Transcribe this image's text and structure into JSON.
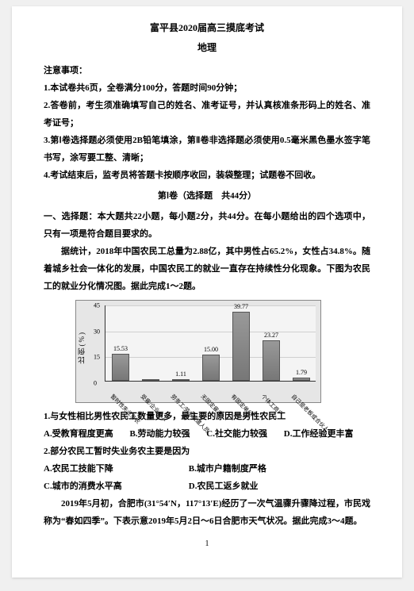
{
  "header": {
    "title_line1": "富平县2020届高三摸底考试",
    "title_line2": "地理"
  },
  "notes": {
    "heading": "注意事项：",
    "n1": "1.本试卷共6页，全卷满分100分，答题时间90分钟；",
    "n2": "2.答卷前，考生须准确填写自己的姓名、准考证号，并认真核准条形码上的姓名、准考证号；",
    "n3": "3.第Ⅰ卷选择题必须使用2B铅笔填涂，第Ⅱ卷非选择题必须使用0.5毫米黑色墨水签字笔书写，涂写要工整、清晰；",
    "n4": "4.考试结束后，监考员将答题卡按顺序收回，装袋整理；试题卷不回收。"
  },
  "section1": {
    "title": "第Ⅰ卷（选择题　共44分）",
    "desc": "一、选择题：本大题共22小题，每小题2分，共44分。在每小题给出的四个选项中，只有一项是符合题目要求的。"
  },
  "passage1": {
    "text": "据统计，2018年中国农民工总量为2.88亿，其中男性占65.2%，女性占34.8%。随着城乡社会一体化的发展，中国农民工的就业一直存在持续性分化现象。下图为农民工的就业分化情况图。据此完成1～2题。"
  },
  "chart": {
    "ylabel": "比例(%)",
    "ymax": 45,
    "ytick_step": 15,
    "background_color": "#e6e6e6",
    "grid_color": "#d0d0d0",
    "bar_color": "#838383",
    "categories": [
      "暂时性失业务农",
      "受雇/企业务工",
      "劳务工/劳务派遣人员",
      "无固定雇主",
      "有固定单位",
      "个体工商户",
      "自己是老板或合伙人"
    ],
    "values": [
      15.53,
      1.1,
      1.11,
      15.0,
      39.77,
      23.27,
      1.79
    ],
    "labels": [
      "15.53",
      "",
      "1.11",
      "15.00",
      "39.77",
      "23.27",
      "1.79"
    ]
  },
  "q1": {
    "stem": "1.与女性相比男性农民工数量更多，最主要的原因是男性农民工",
    "A": "A.受教育程度更高",
    "B": "B.劳动能力较强",
    "C": "C.社交能力较强",
    "D": "D.工作经验更丰富"
  },
  "q2": {
    "stem": "2.部分农民工暂时失业务农主要是因为",
    "A": "A.农民工技能下降",
    "B": "B.城市户籍制度严格",
    "C": "C.城市的消费水平高",
    "D": "D.农民工返乡就业"
  },
  "passage2": {
    "text": "2019年5月初，合肥市(31°54′N，117°13′E)经历了一次气温骤升骤降过程，市民戏称为“春如四季”。下表示意2019年5月2日～6日合肥市天气状况。据此完成3～4题。"
  },
  "page_number": "1"
}
